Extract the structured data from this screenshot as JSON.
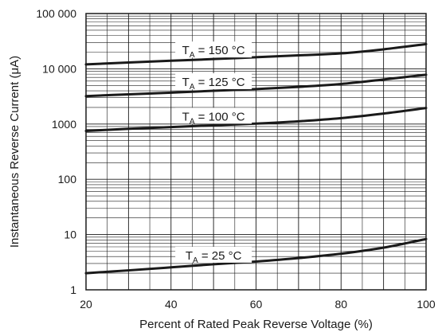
{
  "chart_data": {
    "type": "line",
    "xlabel": "Percent of Rated Peak Reverse Voltage (%)",
    "ylabel": "Instantaneous Reverse Current (μA)",
    "xlim": [
      20,
      100
    ],
    "ylim": [
      1,
      100000
    ],
    "y_scale": "log",
    "grid": true,
    "x_ticks": [
      20,
      40,
      60,
      80,
      100
    ],
    "x_tick_labels": [
      "20",
      "40",
      "60",
      "80",
      "100"
    ],
    "y_ticks": [
      1,
      10,
      100,
      1000,
      10000,
      100000
    ],
    "y_tick_labels": [
      "1",
      "10",
      "100",
      "1000",
      "10 000",
      "100 000"
    ],
    "series": [
      {
        "name": "TA = 150 °C",
        "label_main": "T",
        "label_sub": "A",
        "label_rest": " = 150 °C",
        "x": [
          20,
          30,
          40,
          50,
          60,
          70,
          80,
          90,
          100
        ],
        "values": [
          12000,
          13000,
          14000,
          15000,
          16200,
          17500,
          19000,
          22500,
          28000
        ]
      },
      {
        "name": "TA = 125 °C",
        "label_main": "T",
        "label_sub": "A",
        "label_rest": " = 125 °C",
        "x": [
          20,
          30,
          40,
          50,
          60,
          70,
          80,
          90,
          100
        ],
        "values": [
          3200,
          3450,
          3700,
          4000,
          4300,
          4700,
          5300,
          6400,
          7800
        ]
      },
      {
        "name": "TA = 100 °C",
        "label_main": "T",
        "label_sub": "A",
        "label_rest": " = 100 °C",
        "x": [
          20,
          30,
          40,
          50,
          60,
          70,
          80,
          90,
          100
        ],
        "values": [
          750,
          820,
          880,
          950,
          1020,
          1120,
          1280,
          1550,
          1950
        ]
      },
      {
        "name": "TA = 25 °C",
        "label_main": "T",
        "label_sub": "A",
        "label_rest": " = 25 °C",
        "x": [
          20,
          30,
          40,
          50,
          60,
          70,
          80,
          90,
          100
        ],
        "values": [
          2.0,
          2.25,
          2.55,
          2.9,
          3.25,
          3.75,
          4.5,
          5.8,
          8.3
        ]
      }
    ]
  }
}
